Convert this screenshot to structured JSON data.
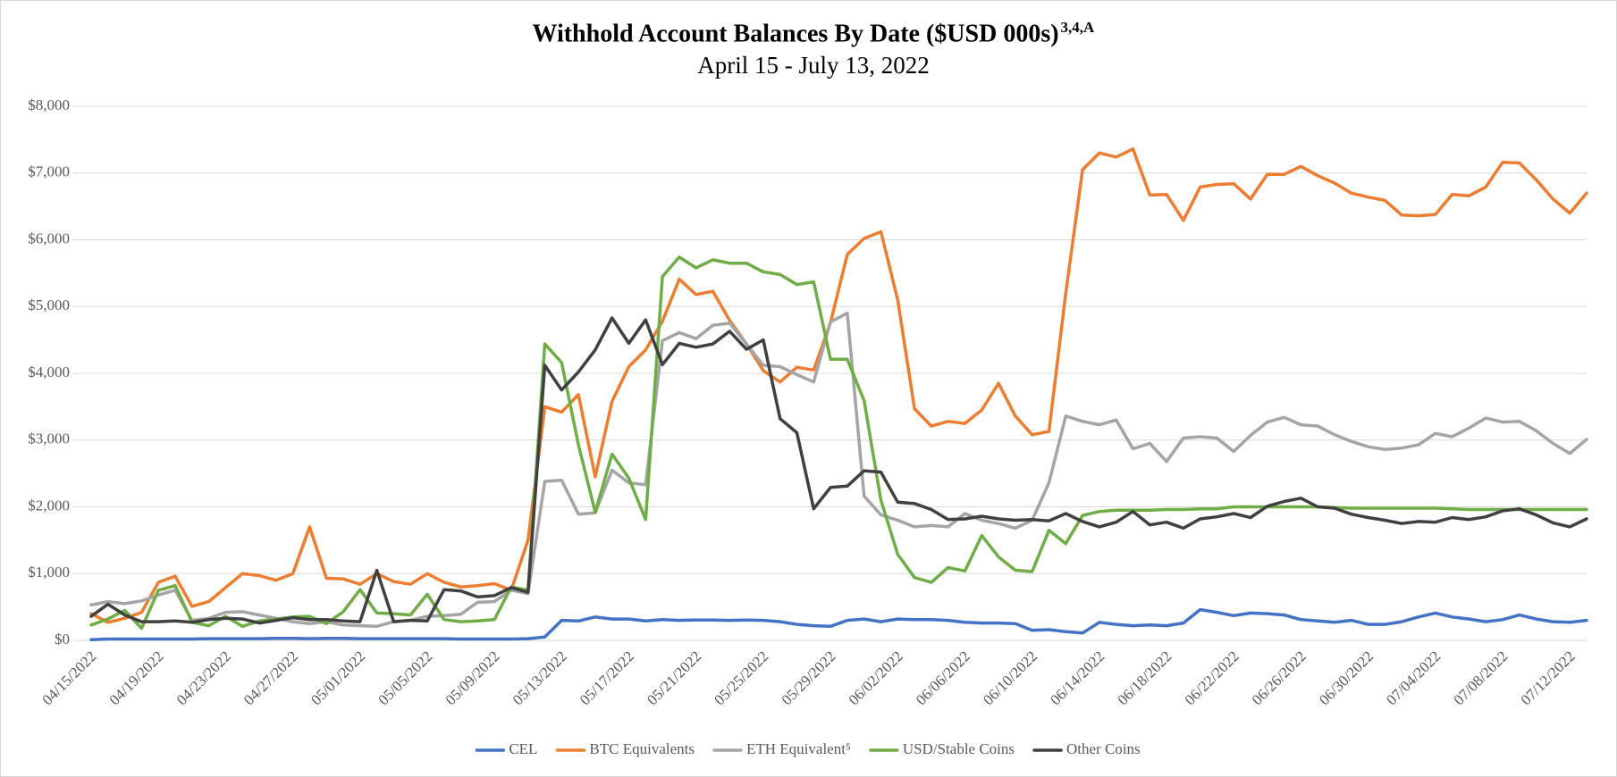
{
  "chart_data": {
    "type": "line",
    "title": "Withhold Account Balances By Date ($USD 000s)",
    "title_superscript": "3,4,A",
    "subtitle": "April 15 - July 13, 2022",
    "categories": [
      "04/15/2022",
      null,
      null,
      null,
      "04/19/2022",
      null,
      null,
      null,
      "04/23/2022",
      null,
      null,
      null,
      "04/27/2022",
      null,
      null,
      null,
      "05/01/2022",
      null,
      null,
      null,
      "05/05/2022",
      null,
      null,
      null,
      "05/09/2022",
      null,
      null,
      null,
      "05/13/2022",
      null,
      null,
      null,
      "05/17/2022",
      null,
      null,
      null,
      "05/21/2022",
      null,
      null,
      null,
      "05/25/2022",
      null,
      null,
      null,
      "05/29/2022",
      null,
      null,
      null,
      "06/02/2022",
      null,
      null,
      null,
      "06/06/2022",
      null,
      null,
      null,
      "06/10/2022",
      null,
      null,
      null,
      "06/14/2022",
      null,
      null,
      null,
      "06/18/2022",
      null,
      null,
      null,
      "06/22/2022",
      null,
      null,
      null,
      "06/26/2022",
      null,
      null,
      null,
      "06/30/2022",
      null,
      null,
      null,
      "07/04/2022",
      null,
      null,
      null,
      "07/08/2022",
      null,
      null,
      null,
      "07/12/2022",
      null
    ],
    "series": [
      {
        "name": "CEL",
        "color": "#4472c4",
        "values": [
          10,
          20,
          20,
          20,
          20,
          20,
          20,
          25,
          25,
          25,
          25,
          30,
          30,
          25,
          30,
          30,
          25,
          25,
          25,
          25,
          25,
          25,
          20,
          20,
          20,
          20,
          25,
          50,
          300,
          290,
          350,
          320,
          320,
          290,
          310,
          300,
          305,
          305,
          300,
          305,
          300,
          280,
          240,
          220,
          210,
          300,
          320,
          280,
          320,
          310,
          310,
          300,
          270,
          260,
          260,
          250,
          150,
          160,
          130,
          110,
          270,
          240,
          220,
          230,
          220,
          260,
          460,
          420,
          370,
          410,
          400,
          380,
          310,
          290,
          270,
          300,
          240,
          240,
          280,
          350,
          410,
          350,
          320,
          280,
          310,
          380,
          320,
          280,
          270,
          300
        ]
      },
      {
        "name": "BTC Equivalents",
        "color": "#ed7d31",
        "values": [
          400,
          270,
          330,
          420,
          870,
          960,
          510,
          580,
          790,
          1000,
          970,
          900,
          1000,
          1700,
          930,
          920,
          840,
          1000,
          880,
          840,
          1000,
          870,
          800,
          820,
          850,
          750,
          1500,
          3500,
          3420,
          3680,
          2450,
          3580,
          4100,
          4350,
          4780,
          5410,
          5180,
          5230,
          4790,
          4440,
          4040,
          3870,
          4090,
          4050,
          4760,
          5780,
          6020,
          6120,
          5100,
          3470,
          3210,
          3280,
          3250,
          3450,
          3850,
          3360,
          3080,
          3130,
          5200,
          7050,
          7300,
          7240,
          7360,
          6670,
          6680,
          6290,
          6790,
          6830,
          6840,
          6610,
          6980,
          6980,
          7100,
          6960,
          6850,
          6700,
          6640,
          6590,
          6370,
          6360,
          6380,
          6680,
          6660,
          6790,
          7160,
          7150,
          6900,
          6610,
          6400,
          6700
        ]
      },
      {
        "name": "ETH Equivalent⁵",
        "color": "#a5a5a5",
        "values": [
          530,
          580,
          550,
          590,
          680,
          750,
          300,
          330,
          420,
          430,
          380,
          330,
          280,
          250,
          280,
          230,
          220,
          210,
          280,
          300,
          360,
          370,
          390,
          570,
          580,
          750,
          700,
          2380,
          2400,
          1890,
          1910,
          2550,
          2360,
          2330,
          4490,
          4610,
          4520,
          4720,
          4750,
          4440,
          4120,
          4100,
          3980,
          3870,
          4770,
          4900,
          2160,
          1880,
          1800,
          1700,
          1720,
          1700,
          1900,
          1800,
          1750,
          1680,
          1800,
          2360,
          3360,
          3280,
          3230,
          3300,
          2870,
          2950,
          2680,
          3030,
          3050,
          3030,
          2830,
          3070,
          3270,
          3340,
          3230,
          3210,
          3080,
          2980,
          2900,
          2860,
          2880,
          2930,
          3100,
          3050,
          3180,
          3330,
          3270,
          3280,
          3140,
          2950,
          2800,
          3010
        ]
      },
      {
        "name": "USD/Stable Coins",
        "color": "#70ad47",
        "values": [
          230,
          320,
          450,
          180,
          750,
          820,
          270,
          220,
          360,
          210,
          290,
          320,
          350,
          360,
          250,
          430,
          760,
          410,
          400,
          380,
          690,
          310,
          280,
          290,
          310,
          800,
          750,
          4440,
          4160,
          2930,
          1920,
          2790,
          2430,
          1810,
          5450,
          5740,
          5580,
          5700,
          5650,
          5650,
          5520,
          5480,
          5330,
          5370,
          4210,
          4210,
          3590,
          2100,
          1290,
          940,
          870,
          1090,
          1040,
          1570,
          1250,
          1050,
          1030,
          1650,
          1450,
          1870,
          1930,
          1950,
          1950,
          1950,
          1960,
          1960,
          1970,
          1970,
          2000,
          2000,
          2000,
          2000,
          2000,
          2000,
          1990,
          1980,
          1980,
          1980,
          1980,
          1980,
          1980,
          1970,
          1960,
          1960,
          1960,
          1960,
          1960,
          1960,
          1960,
          1960
        ]
      },
      {
        "name": "Other Coins",
        "color": "#404040",
        "values": [
          360,
          540,
          380,
          280,
          280,
          290,
          270,
          310,
          330,
          320,
          260,
          300,
          340,
          310,
          310,
          290,
          280,
          1050,
          280,
          300,
          290,
          760,
          740,
          650,
          670,
          790,
          720,
          4120,
          3750,
          4020,
          4350,
          4830,
          4450,
          4800,
          4130,
          4450,
          4390,
          4440,
          4630,
          4360,
          4500,
          3320,
          3110,
          1970,
          2290,
          2310,
          2540,
          2520,
          2070,
          2050,
          1960,
          1810,
          1820,
          1860,
          1820,
          1800,
          1810,
          1790,
          1900,
          1780,
          1700,
          1770,
          1930,
          1730,
          1770,
          1680,
          1820,
          1850,
          1900,
          1840,
          2010,
          2080,
          2130,
          2000,
          1980,
          1890,
          1840,
          1800,
          1750,
          1780,
          1770,
          1840,
          1810,
          1850,
          1940,
          1970,
          1880,
          1760,
          1700,
          1820
        ]
      }
    ],
    "ylim": [
      0,
      8000
    ],
    "yticks": [
      {
        "value": 0,
        "label": "$0"
      },
      {
        "value": 1000,
        "label": "$1,000"
      },
      {
        "value": 2000,
        "label": "$2,000"
      },
      {
        "value": 3000,
        "label": "$3,000"
      },
      {
        "value": 4000,
        "label": "$4,000"
      },
      {
        "value": 5000,
        "label": "$5,000"
      },
      {
        "value": 6000,
        "label": "$6,000"
      },
      {
        "value": 7000,
        "label": "$7,000"
      },
      {
        "value": 8000,
        "label": "$8,000"
      }
    ],
    "grid": true,
    "legend": "bottom"
  }
}
